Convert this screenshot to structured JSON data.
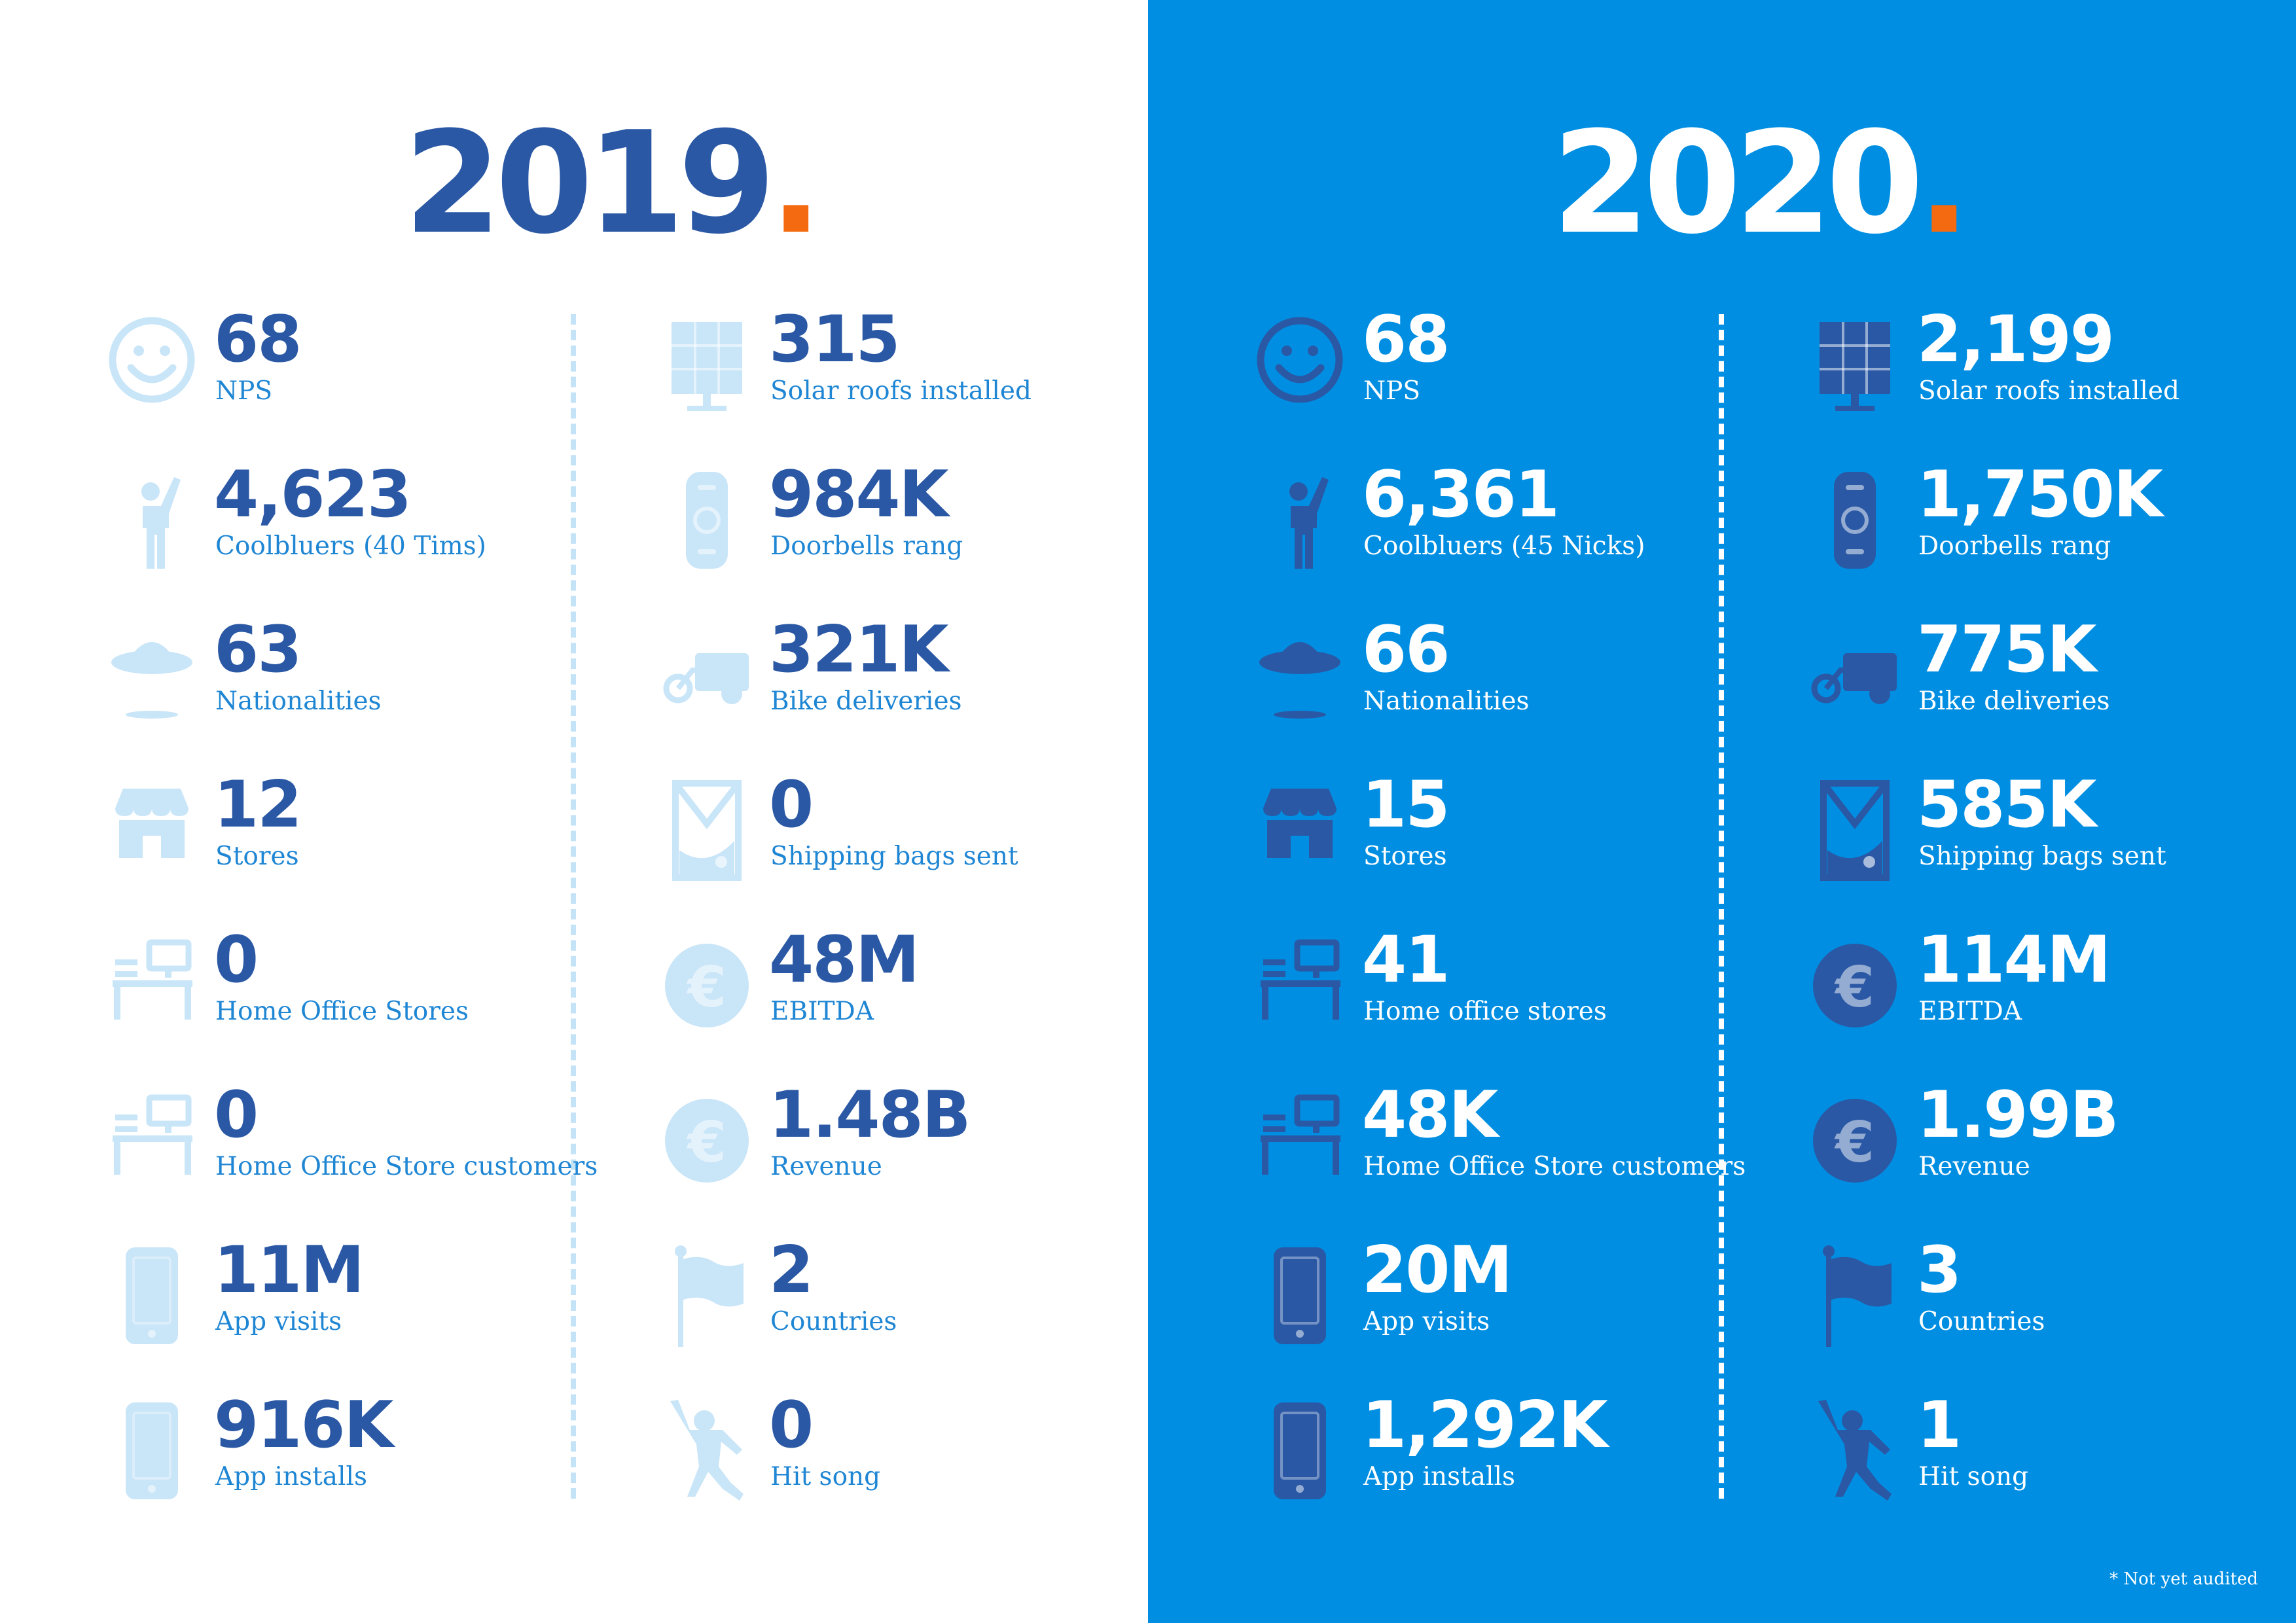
{
  "colors": {
    "left_background": "#ffffff",
    "right_background": "#008ee2",
    "dark_blue": "#2a58a5",
    "light_blue": "#c9e5f8",
    "accent_orange": "#f36a10"
  },
  "left": {
    "year": "2019",
    "year_dot": ".",
    "col1": [
      {
        "icon": "smiley-icon",
        "value": "68",
        "label": "NPS"
      },
      {
        "icon": "person-waving-icon",
        "value": "4,623",
        "label": "Coolbluers (40 Tims)"
      },
      {
        "icon": "ufo-icon",
        "value": "63",
        "label": "Nationalities"
      },
      {
        "icon": "store-icon",
        "value": "12",
        "label": "Stores"
      },
      {
        "icon": "desk-icon",
        "value": "0",
        "label": "Home Office Stores"
      },
      {
        "icon": "desk-icon",
        "value": "0",
        "label": "Home Office Store customers"
      },
      {
        "icon": "phone-icon",
        "value": "11M",
        "label": "App visits"
      },
      {
        "icon": "phone-icon",
        "value": "916K",
        "label": "App installs"
      }
    ],
    "col2": [
      {
        "icon": "solar-panel-icon",
        "value": "315",
        "label": "Solar roofs installed"
      },
      {
        "icon": "doorbell-icon",
        "value": "984K",
        "label": "Doorbells rang"
      },
      {
        "icon": "bike-icon",
        "value": "321K",
        "label": "Bike deliveries"
      },
      {
        "icon": "shipping-bag-icon",
        "value": "0",
        "label": "Shipping bags sent"
      },
      {
        "icon": "euro-icon",
        "value": "48M",
        "label": "EBITDA"
      },
      {
        "icon": "euro-icon",
        "value": "1.48B",
        "label": "Revenue"
      },
      {
        "icon": "flag-icon",
        "value": "2",
        "label": "Countries"
      },
      {
        "icon": "dancer-icon",
        "value": "0",
        "label": "Hit song"
      }
    ]
  },
  "right": {
    "year": "2020",
    "year_dot": ".",
    "col1": [
      {
        "icon": "smiley-icon",
        "value": "68",
        "label": "NPS"
      },
      {
        "icon": "person-waving-icon",
        "value": "6,361",
        "label": "Coolbluers (45 Nicks)"
      },
      {
        "icon": "ufo-icon",
        "value": "66",
        "label": "Nationalities"
      },
      {
        "icon": "store-icon",
        "value": "15",
        "label": "Stores"
      },
      {
        "icon": "desk-icon",
        "value": "41",
        "label": "Home office stores"
      },
      {
        "icon": "desk-icon",
        "value": "48K",
        "label": "Home Office Store customers"
      },
      {
        "icon": "phone-icon",
        "value": "20M",
        "label": "App visits"
      },
      {
        "icon": "phone-icon",
        "value": "1,292K",
        "label": "App installs"
      }
    ],
    "col2": [
      {
        "icon": "solar-panel-icon",
        "value": "2,199",
        "label": "Solar roofs installed"
      },
      {
        "icon": "doorbell-icon",
        "value": "1,750K",
        "label": "Doorbells rang"
      },
      {
        "icon": "bike-icon",
        "value": "775K",
        "label": "Bike deliveries"
      },
      {
        "icon": "shipping-bag-icon",
        "value": "585K",
        "label": "Shipping bags sent"
      },
      {
        "icon": "euro-icon",
        "value": "114M",
        "label": "EBITDA"
      },
      {
        "icon": "euro-icon",
        "value": "1.99B",
        "label": "Revenue"
      },
      {
        "icon": "flag-icon",
        "value": "3",
        "label": "Countries"
      },
      {
        "icon": "dancer-icon",
        "value": "1",
        "label": "Hit song"
      }
    ]
  },
  "footnote": "* Not yet audited"
}
